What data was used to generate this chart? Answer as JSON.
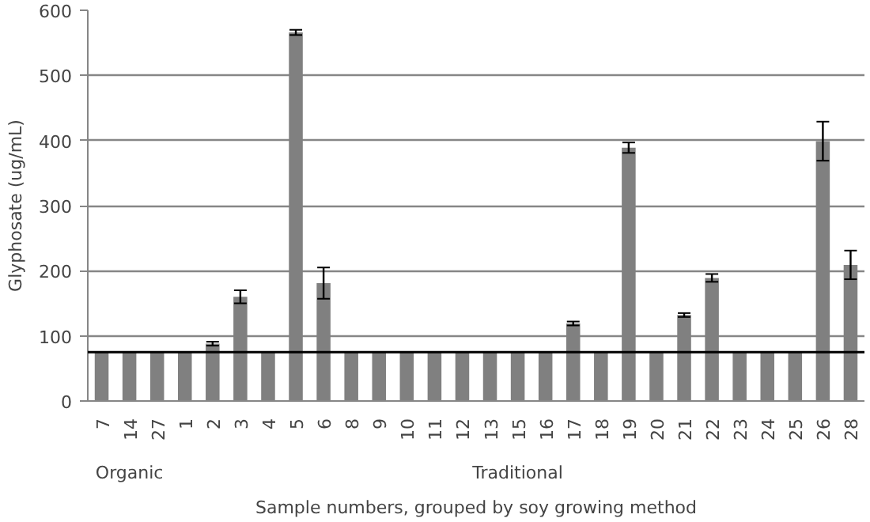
{
  "chart_data": {
    "type": "bar",
    "xlabel": "Sample numbers, grouped by soy growing method",
    "ylabel": "Glyphosate (ug/mL)",
    "categories": [
      "7",
      "14",
      "27",
      "1",
      "2",
      "3",
      "4",
      "5",
      "6",
      "8",
      "9",
      "10",
      "11",
      "12",
      "13",
      "15",
      "16",
      "17",
      "18",
      "19",
      "20",
      "21",
      "22",
      "23",
      "24",
      "25",
      "26",
      "28"
    ],
    "values": [
      75,
      75,
      75,
      75,
      88,
      160,
      75,
      566,
      181,
      75,
      75,
      75,
      75,
      75,
      75,
      75,
      75,
      119,
      75,
      389,
      75,
      132,
      189,
      75,
      75,
      75,
      399,
      209
    ],
    "errors": [
      null,
      null,
      null,
      null,
      3,
      10,
      null,
      4,
      24,
      null,
      null,
      null,
      null,
      null,
      null,
      null,
      null,
      3,
      null,
      8,
      null,
      3,
      6,
      null,
      null,
      null,
      30,
      22
    ],
    "color": "#808080",
    "ylim": [
      0,
      600
    ],
    "yticks": [
      0,
      100,
      200,
      300,
      400,
      500,
      600
    ],
    "grid": "y",
    "ref_lines": [
      {
        "axis": "y",
        "value": 75,
        "color": "#000000"
      }
    ],
    "annotations": [
      "Organic",
      "Traditional"
    ]
  }
}
